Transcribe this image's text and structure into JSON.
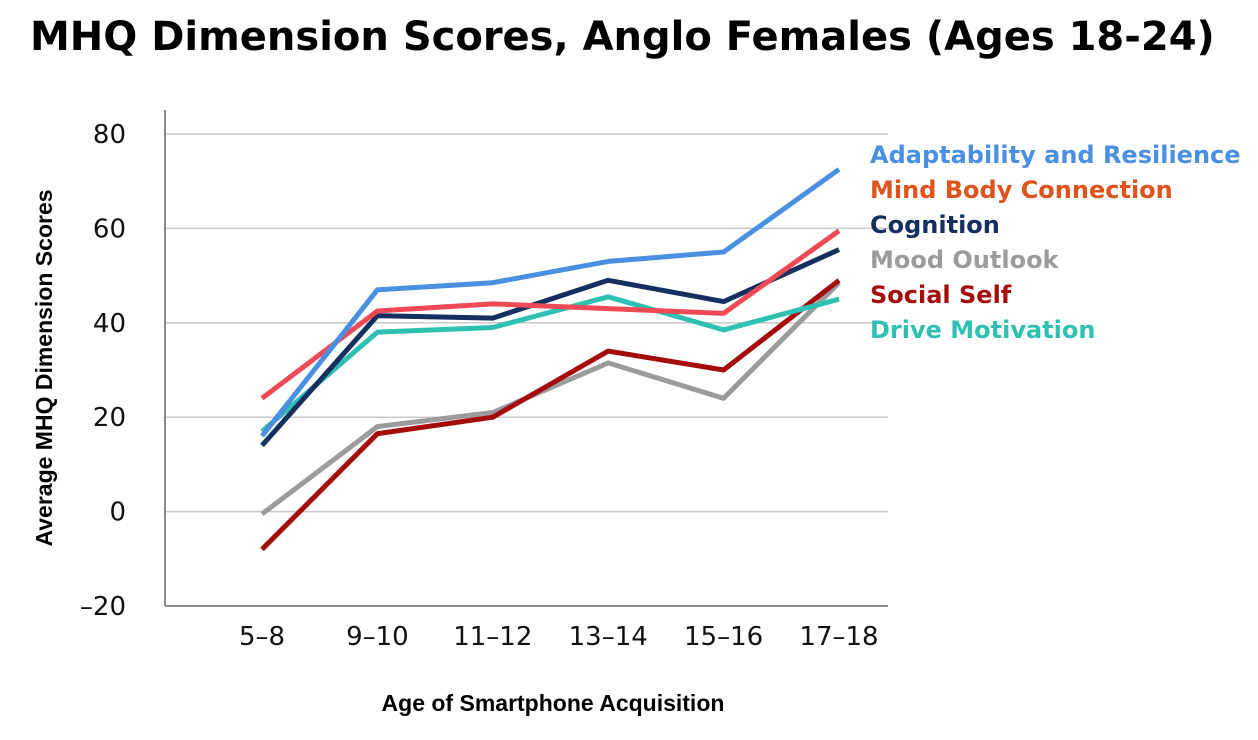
{
  "title": "MHQ Dimension Scores, Anglo Females (Ages 18-24)",
  "chart_data": {
    "type": "line",
    "title": "MHQ Dimension Scores, Anglo Females (Ages 18-24)",
    "xlabel": "Age of Smartphone Acquisition",
    "ylabel": "Average MHQ Dimension Scores",
    "categories": [
      "5–8",
      "9–10",
      "11–12",
      "13–14",
      "15–16",
      "17–18"
    ],
    "ylim": [
      -20,
      80
    ],
    "yticks": [
      -20,
      0,
      20,
      40,
      60,
      80
    ],
    "ytick_labels": [
      "–20",
      "0",
      "20",
      "40",
      "60",
      "80"
    ],
    "grid": true,
    "legend_position": "right",
    "series": [
      {
        "name": "Adaptability and Resilience",
        "color": "#4a90e2",
        "values": [
          16,
          47,
          48.5,
          53,
          55,
          72.5
        ]
      },
      {
        "name": "Mind Body Connection",
        "color": "#f04a55",
        "values": [
          24,
          42.5,
          44,
          43,
          42,
          59.5
        ]
      },
      {
        "name": "Cognition",
        "color": "#142f60",
        "values": [
          14,
          41.5,
          41,
          49,
          44.5,
          55.5
        ]
      },
      {
        "name": "Mood Outlook",
        "color": "#9b9b9b",
        "values": [
          -0.5,
          18,
          21,
          31.5,
          24,
          48.5
        ]
      },
      {
        "name": "Social Self",
        "color": "#a50b0b",
        "values": [
          -8,
          16.5,
          20,
          34,
          30,
          49
        ]
      },
      {
        "name": "Drive Motivation",
        "color": "#2ec0b0",
        "values": [
          17,
          38,
          39,
          45.5,
          38.5,
          45
        ]
      }
    ],
    "legend_colors": [
      "#4a90e2",
      "#e0531c",
      "#142f60",
      "#9b9b9b",
      "#a50b0b",
      "#2ec0b0"
    ]
  }
}
